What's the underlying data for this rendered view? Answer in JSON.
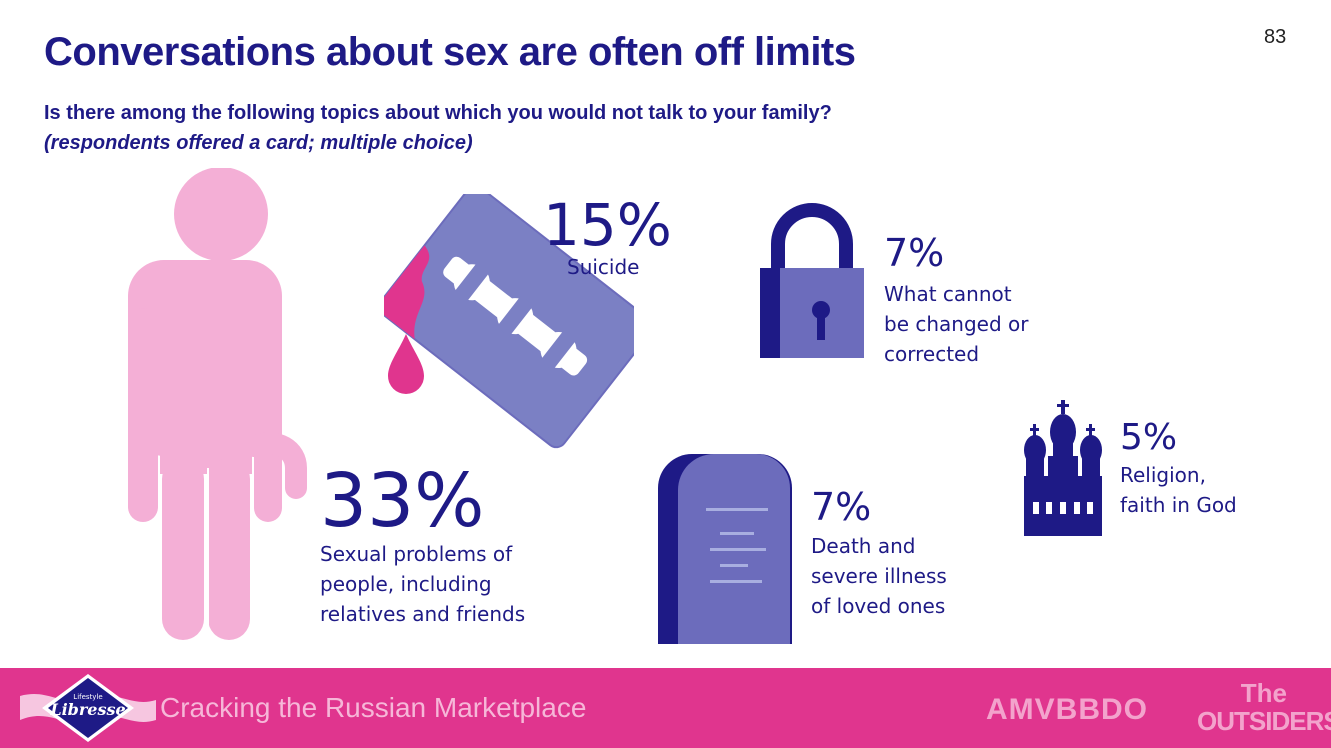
{
  "page_number": "83",
  "title": "Conversations about sex are often off limits",
  "question": "Is there among the following topics about which you would not talk to your family?",
  "note": "(respondents offered a card; multiple choice)",
  "stats": {
    "sexual": {
      "value": "33%",
      "label": [
        "Sexual problems of",
        "people, including",
        "relatives and friends"
      ],
      "icon": "person-icon"
    },
    "suicide": {
      "value": "15%",
      "label": [
        "Suicide"
      ],
      "icon": "razor-blade-icon"
    },
    "unchangeable": {
      "value": "7%",
      "label": [
        "What cannot",
        "be changed or",
        "corrected"
      ],
      "icon": "padlock-icon"
    },
    "death": {
      "value": "7%",
      "label": [
        "Death and",
        "severe illness",
        "of loved ones"
      ],
      "icon": "tombstone-icon"
    },
    "religion": {
      "value": "5%",
      "label": [
        "Religion,",
        "faith in God"
      ],
      "icon": "church-icon"
    }
  },
  "footer": {
    "brand_small": "Lifestyle",
    "brand": "Libresse",
    "tagline": "Cracking the Russian Marketplace",
    "agency": "AMVBBDO",
    "partner_line1": "The",
    "partner_line2": "OUTSIDERS"
  },
  "colors": {
    "navy": "#1e1a86",
    "pink": "#f4afd6",
    "magenta": "#e0358e",
    "lavender": "#6c6cbc",
    "slate": "#7b80c4"
  }
}
